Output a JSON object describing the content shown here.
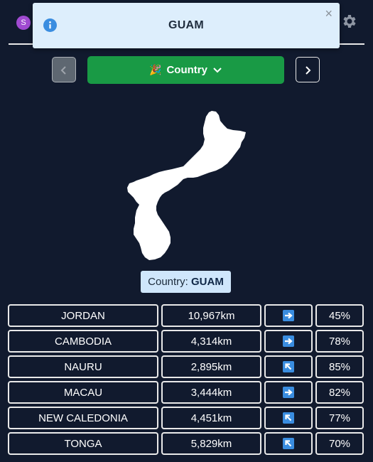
{
  "header": {
    "avatar_letter": "S"
  },
  "toast": {
    "title": "GUAM",
    "close_glyph": "×"
  },
  "controls": {
    "prev_icon": "chevron-left-icon",
    "next_icon": "chevron-right-icon",
    "select_emoji": "🎉",
    "select_label": "Country",
    "select_icon": "chevron-down-icon"
  },
  "map": {
    "shape": "guam-silhouette",
    "fill": "#ffffff"
  },
  "answer": {
    "prefix": "Country: ",
    "value": "GUAM"
  },
  "guesses": [
    {
      "country": "JORDAN",
      "distance": "10,967km",
      "direction": "east",
      "proximity": "45%"
    },
    {
      "country": "CAMBODIA",
      "distance": "4,314km",
      "direction": "east",
      "proximity": "78%"
    },
    {
      "country": "NAURU",
      "distance": "2,895km",
      "direction": "northwest",
      "proximity": "85%"
    },
    {
      "country": "MACAU",
      "distance": "3,444km",
      "direction": "east",
      "proximity": "82%"
    },
    {
      "country": "NEW CALEDONIA",
      "distance": "4,451km",
      "direction": "northwest",
      "proximity": "77%"
    },
    {
      "country": "TONGA",
      "distance": "5,829km",
      "direction": "northwest",
      "proximity": "70%"
    }
  ],
  "colors": {
    "background": "#111a2e",
    "accent_green": "#199a45",
    "toast_bg": "#ddeefc",
    "info_blue": "#3a8de0",
    "avatar": "#a04ad1"
  }
}
